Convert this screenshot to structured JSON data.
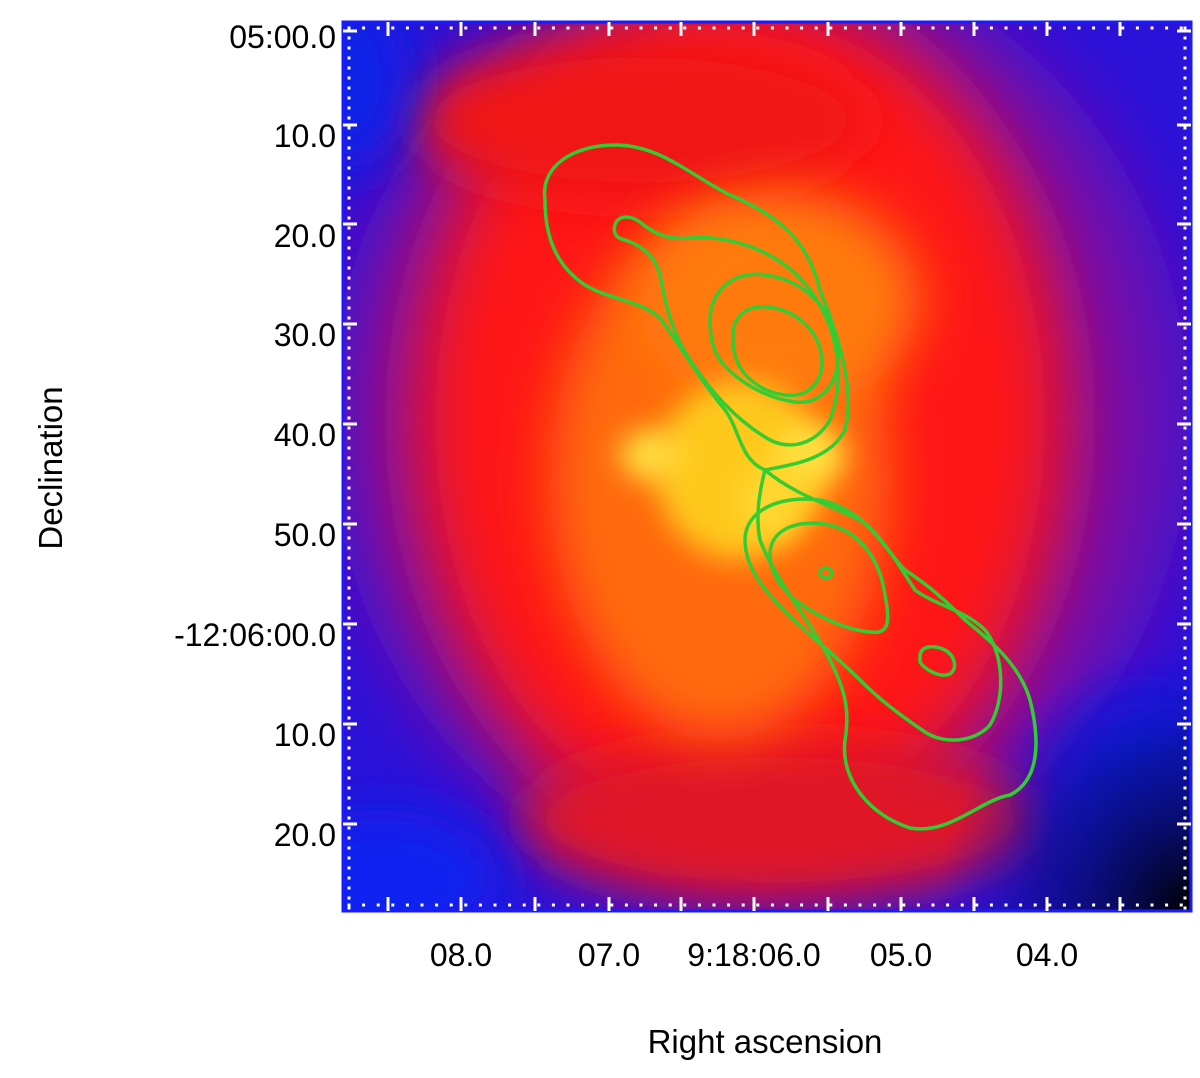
{
  "axes": {
    "xlabel": "Right ascension",
    "ylabel": "Declination",
    "x_ticks": [
      "08.0",
      "07.0",
      "9:18:06.0",
      "05.0",
      "04.0"
    ],
    "y_ticks": [
      "05:00.0",
      "10.0",
      "20.0",
      "30.0",
      "40.0",
      "50.0",
      "-12:06:00.0",
      "10.0",
      "20.0"
    ]
  },
  "colors": {
    "frame": "#1a1aff",
    "tick_marks": "#ffffff",
    "contours": "#33cc33",
    "map_low": "#0a10e0",
    "map_mid": "#ff1010",
    "map_high": "#ffe040"
  },
  "image": {
    "description": "false-color intensity map with radio contour overlay",
    "contour_levels": 4
  }
}
